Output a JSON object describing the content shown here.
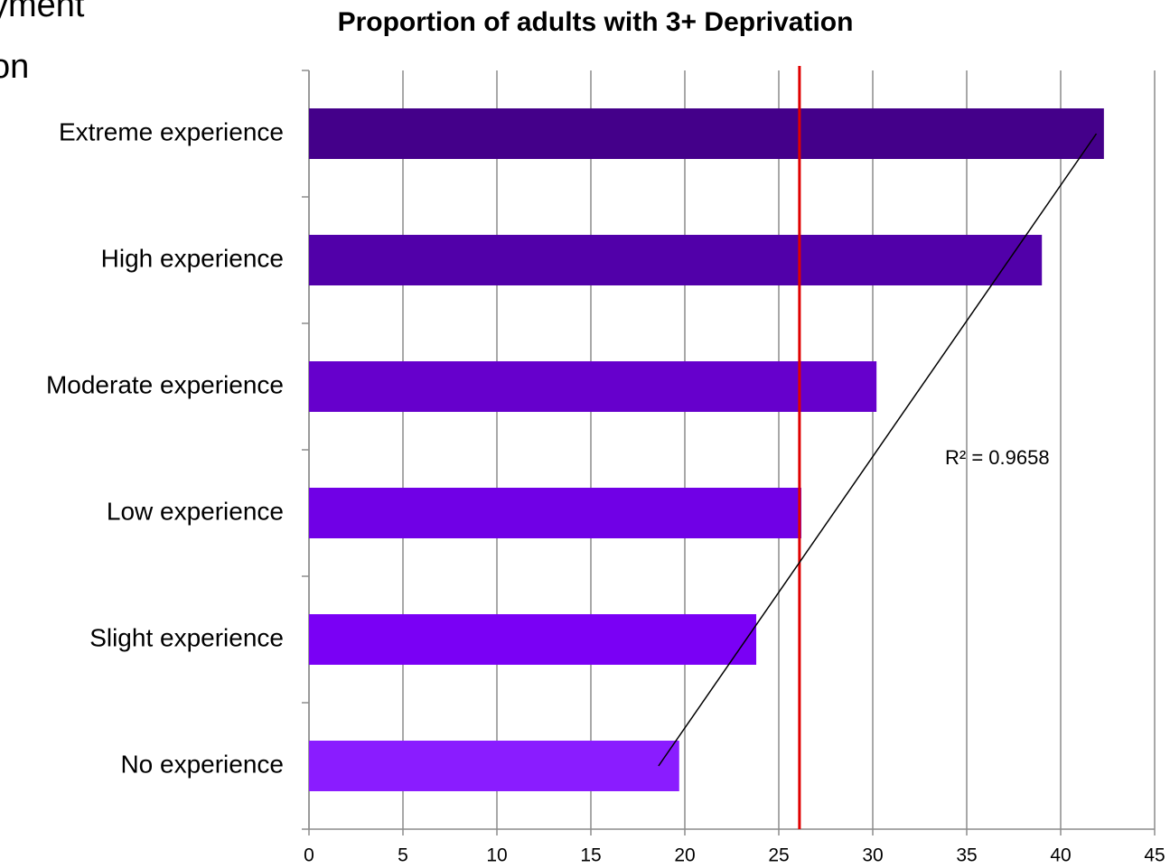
{
  "background_text": [
    "yment",
    "on"
  ],
  "chart_data": {
    "type": "hbar",
    "title": "Proportion of adults with 3+ Deprivation",
    "categories": [
      "Extreme experience",
      "High experience",
      "Moderate experience",
      "Low experience",
      "Slight experience",
      "No experience"
    ],
    "values": [
      42.3,
      39.0,
      30.2,
      26.2,
      23.8,
      19.7
    ],
    "colors": [
      "#44008a",
      "#5100a9",
      "#6600cc",
      "#7000e6",
      "#7a00f5",
      "#8a1cff"
    ],
    "xlim": [
      0,
      45
    ],
    "xticks": [
      0,
      5,
      10,
      15,
      20,
      25,
      30,
      35,
      40,
      45
    ],
    "grid": true,
    "reference_line": {
      "value": 26.1,
      "color": "#e00000"
    },
    "trendline": {
      "start": 18.6,
      "end": 41.9,
      "label": "R² = 0.9658",
      "color": "#000000"
    }
  }
}
